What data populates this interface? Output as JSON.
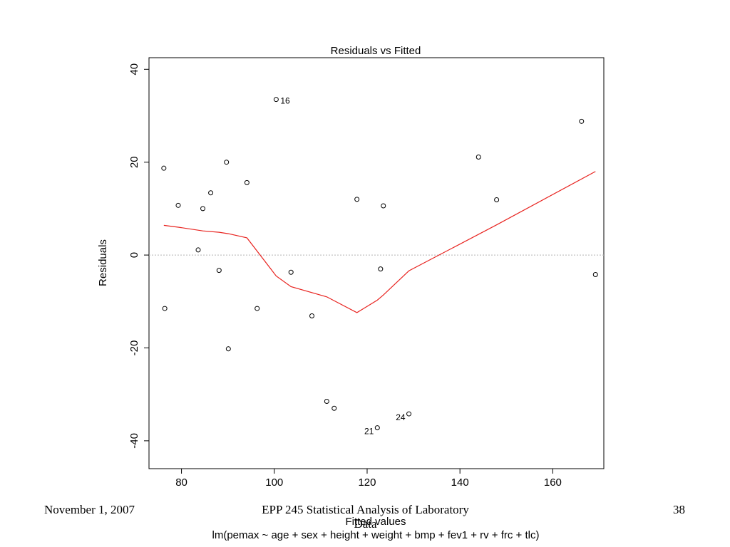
{
  "chart_data": {
    "type": "scatter",
    "title": "Residuals vs Fitted",
    "xlabel": "Fitted values",
    "ylabel": "Residuals",
    "subtitle": "lm(pemax ~ age + sex + height + weight + bmp + fev1 + rv + frc + tlc)",
    "xlim": [
      73,
      171
    ],
    "ylim": [
      -46,
      42.5
    ],
    "x_ticks": [
      80,
      100,
      120,
      140,
      160
    ],
    "y_ticks": [
      -40,
      -20,
      0,
      20,
      40
    ],
    "reference_line": 0,
    "grid": false,
    "colors": {
      "points": "#000000",
      "smooth": "#e8231f",
      "reference": "#b3b3b3"
    },
    "points": [
      {
        "x": 76.2,
        "y": 18.7,
        "label": ""
      },
      {
        "x": 76.4,
        "y": -11.5,
        "label": ""
      },
      {
        "x": 79.3,
        "y": 10.7,
        "label": ""
      },
      {
        "x": 83.6,
        "y": 1.1,
        "label": ""
      },
      {
        "x": 84.6,
        "y": 10.0,
        "label": ""
      },
      {
        "x": 86.3,
        "y": 13.4,
        "label": ""
      },
      {
        "x": 88.1,
        "y": -3.3,
        "label": ""
      },
      {
        "x": 89.7,
        "y": 20.0,
        "label": ""
      },
      {
        "x": 90.1,
        "y": -20.2,
        "label": ""
      },
      {
        "x": 94.1,
        "y": 15.6,
        "label": ""
      },
      {
        "x": 96.3,
        "y": -11.5,
        "label": ""
      },
      {
        "x": 100.4,
        "y": 33.5,
        "label": "16"
      },
      {
        "x": 103.6,
        "y": -3.7,
        "label": ""
      },
      {
        "x": 108.1,
        "y": -13.1,
        "label": ""
      },
      {
        "x": 111.3,
        "y": -31.5,
        "label": ""
      },
      {
        "x": 112.9,
        "y": -33.0,
        "label": ""
      },
      {
        "x": 117.8,
        "y": 12.0,
        "label": ""
      },
      {
        "x": 122.2,
        "y": -37.2,
        "label": "21"
      },
      {
        "x": 122.9,
        "y": -3.0,
        "label": ""
      },
      {
        "x": 123.5,
        "y": 10.6,
        "label": ""
      },
      {
        "x": 129.0,
        "y": -34.2,
        "label": "24"
      },
      {
        "x": 144.0,
        "y": 21.1,
        "label": ""
      },
      {
        "x": 147.9,
        "y": 11.9,
        "label": ""
      },
      {
        "x": 166.2,
        "y": 28.8,
        "label": ""
      },
      {
        "x": 169.2,
        "y": -4.2,
        "label": ""
      }
    ],
    "smooth_line": {
      "x": [
        76.2,
        79.3,
        84.6,
        88.1,
        90.1,
        94.1,
        100.4,
        103.6,
        111.3,
        117.8,
        122.2,
        123.5,
        129.0,
        147.9,
        169.2
      ],
      "y": [
        6.4,
        6.0,
        5.2,
        4.9,
        4.6,
        3.7,
        -4.5,
        -6.8,
        -9.0,
        -12.4,
        -9.7,
        -8.6,
        -3.4,
        6.5,
        18.0
      ]
    }
  },
  "footer": {
    "date": "November 1, 2007",
    "course": "EPP 245 Statistical Analysis of Laboratory Data",
    "page": "38"
  }
}
